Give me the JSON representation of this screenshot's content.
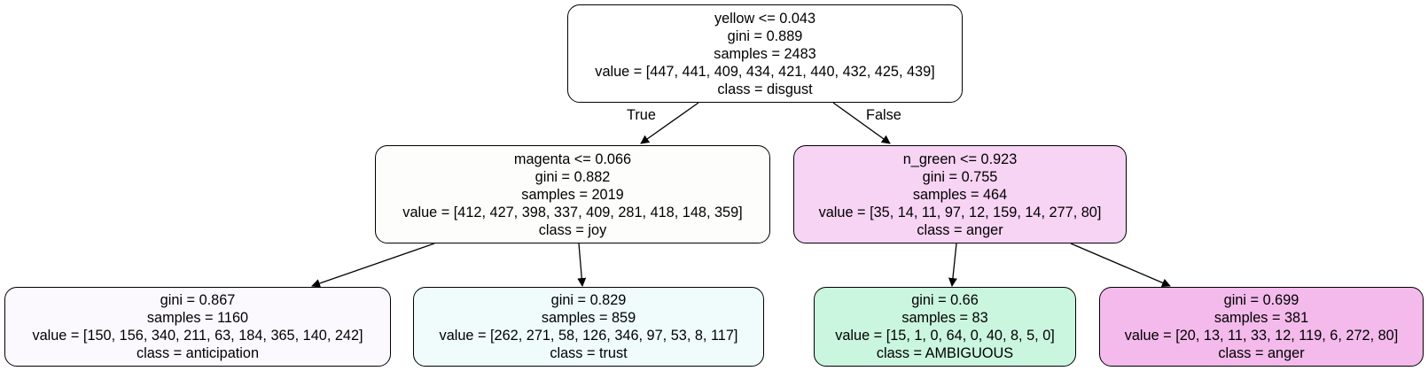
{
  "tree": {
    "root": {
      "lines": [
        "yellow <= 0.043",
        "gini = 0.889",
        "samples = 2483",
        "value = [447, 441, 409, 434, 421, 440, 432, 425, 439]",
        "class = disgust"
      ],
      "fill": "#ffffff"
    },
    "left": {
      "lines": [
        "magenta <= 0.066",
        "gini = 0.882",
        "samples = 2019",
        "value = [412, 427, 398, 337, 409, 281, 418, 148, 359]",
        "class = joy"
      ],
      "fill": "#fdfdfc"
    },
    "right": {
      "lines": [
        "n_green <= 0.923",
        "gini = 0.755",
        "samples = 464",
        "value = [35, 14, 11, 97, 12, 159, 14, 277, 80]",
        "class = anger"
      ],
      "fill": "#f7d3f4"
    },
    "left_left": {
      "lines": [
        "gini = 0.867",
        "samples = 1160",
        "value = [150, 156, 340, 211, 63, 184, 365, 140, 242]",
        "class = anticipation"
      ],
      "fill": "#fcf9fe"
    },
    "left_right": {
      "lines": [
        "gini = 0.829",
        "samples = 859",
        "value = [262, 271, 58, 126, 346, 97, 53, 8, 117]",
        "class = trust"
      ],
      "fill": "#effcfb"
    },
    "right_left": {
      "lines": [
        "gini = 0.66",
        "samples = 83",
        "value = [15, 1, 0, 64, 0, 40, 8, 5, 0]",
        "class = AMBIGUOUS"
      ],
      "fill": "#caf5df"
    },
    "right_right": {
      "lines": [
        "gini = 0.699",
        "samples = 381",
        "value = [20, 13, 11, 33, 12, 119, 6, 272, 80]",
        "class = anger"
      ],
      "fill": "#f3baeb"
    }
  },
  "edge_labels": {
    "true_label": "True",
    "false_label": "False"
  }
}
